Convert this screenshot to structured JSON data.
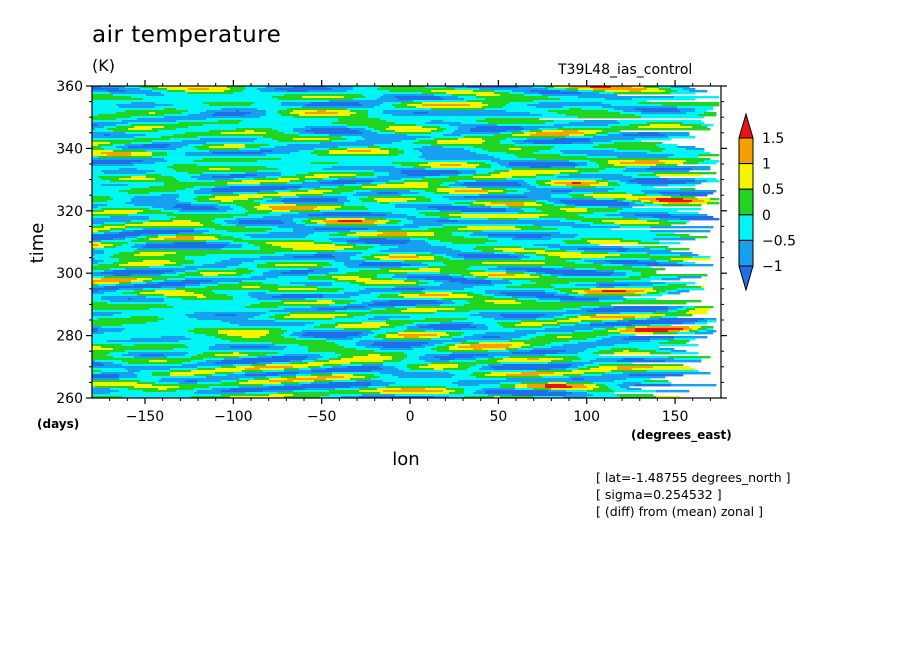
{
  "title": "air temperature",
  "units": "(K)",
  "run_name": "T39L48_ias_control",
  "notes": [
    "[ lat=-1.48755 degrees_north ]",
    "[ sigma=0.254532 ]",
    "[ (diff) from (mean) zonal ]"
  ],
  "chart_data": {
    "type": "heatmap",
    "title": "air temperature",
    "subtitle": "(K)",
    "xlabel": "lon",
    "xunits": "(degrees_east)",
    "ylabel": "time",
    "yunits": "(days)",
    "xlim": [
      -180,
      176
    ],
    "ylim": [
      260,
      360
    ],
    "x_ticks": [
      -150,
      -100,
      -50,
      0,
      50,
      100,
      150
    ],
    "x_tick_labels": [
      "−150",
      "−100",
      "−50",
      "0",
      "50",
      "100",
      "150"
    ],
    "y_ticks": [
      260,
      280,
      300,
      320,
      340,
      360
    ],
    "y_tick_labels": [
      "260",
      "280",
      "300",
      "320",
      "340",
      "360"
    ],
    "grid": false,
    "legend": "right",
    "colorbar": {
      "levels": [
        -1,
        -0.5,
        0,
        0.5,
        1,
        1.5
      ],
      "level_labels": [
        "−1",
        "−0.5",
        "0",
        "0.5",
        "1",
        "1.5"
      ],
      "colors": [
        "#1f6fe6",
        "#18a0f0",
        "#00f5f5",
        "#21d421",
        "#f5f500",
        "#f5a000",
        "#e61414"
      ],
      "extend": "both"
    }
  }
}
